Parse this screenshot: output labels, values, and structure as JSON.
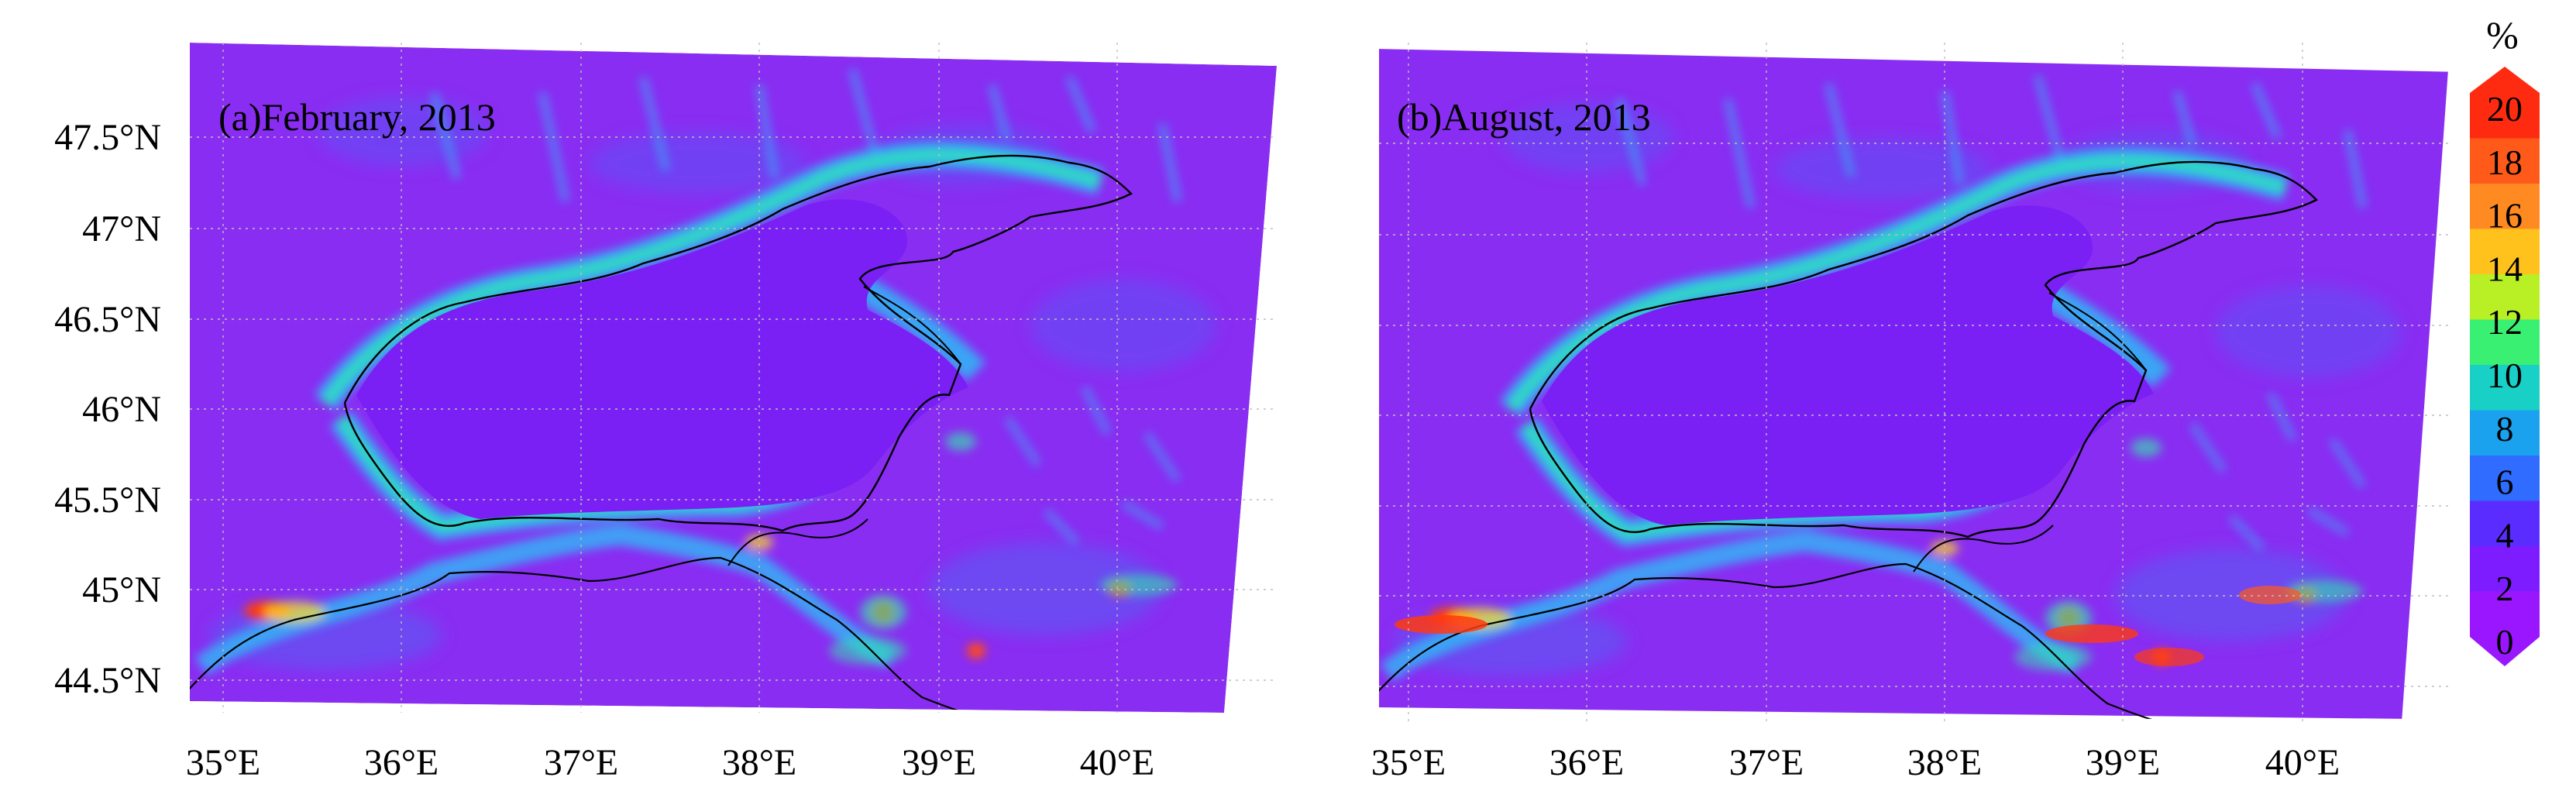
{
  "panels": [
    {
      "label": "(a)February, 2013",
      "x_ticks": [
        "35°E",
        "36°E",
        "37°E",
        "38°E",
        "39°E",
        "40°E"
      ],
      "y_ticks": [
        "47.5°N",
        "47°N",
        "46.5°N",
        "46°N",
        "45.5°N",
        "45°N",
        "44.5°N"
      ]
    },
    {
      "label": "(b)August, 2013",
      "x_ticks": [
        "35°E",
        "36°E",
        "37°E",
        "38°E",
        "39°E",
        "40°E"
      ],
      "y_ticks": []
    }
  ],
  "colorbar": {
    "unit": "%",
    "ticks": [
      "20",
      "18",
      "16",
      "14",
      "12",
      "10",
      "8",
      "6",
      "4",
      "2",
      "0"
    ],
    "colors": [
      "#ff2b10",
      "#ff5a1a",
      "#ff8a22",
      "#ffc21d",
      "#b8f025",
      "#3af072",
      "#18d0c6",
      "#1aa2ee",
      "#2f6cff",
      "#5b2cff",
      "#7d1cff",
      "#9a16ff"
    ]
  }
}
